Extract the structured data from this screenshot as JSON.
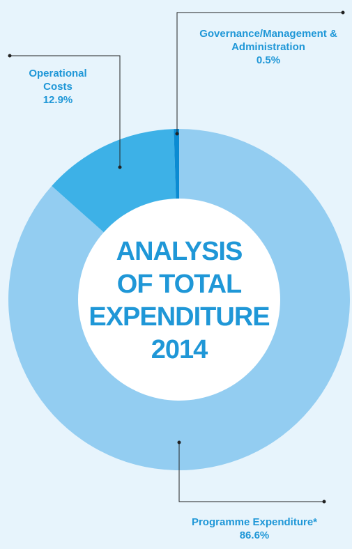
{
  "chart_data": {
    "type": "donut",
    "title": [
      "ANALYSIS",
      "OF TOTAL",
      "EXPENDITURE",
      "2014"
    ],
    "categories": [
      "Programme Expenditure*",
      "Operational Costs",
      "Governance/Management & Administration"
    ],
    "values": [
      86.6,
      12.9,
      0.5
    ],
    "value_labels": [
      "86.6%",
      "12.9%",
      "0.5%"
    ],
    "colors": [
      "#93cdf1",
      "#3db1e7",
      "#0b8bd2"
    ]
  }
}
